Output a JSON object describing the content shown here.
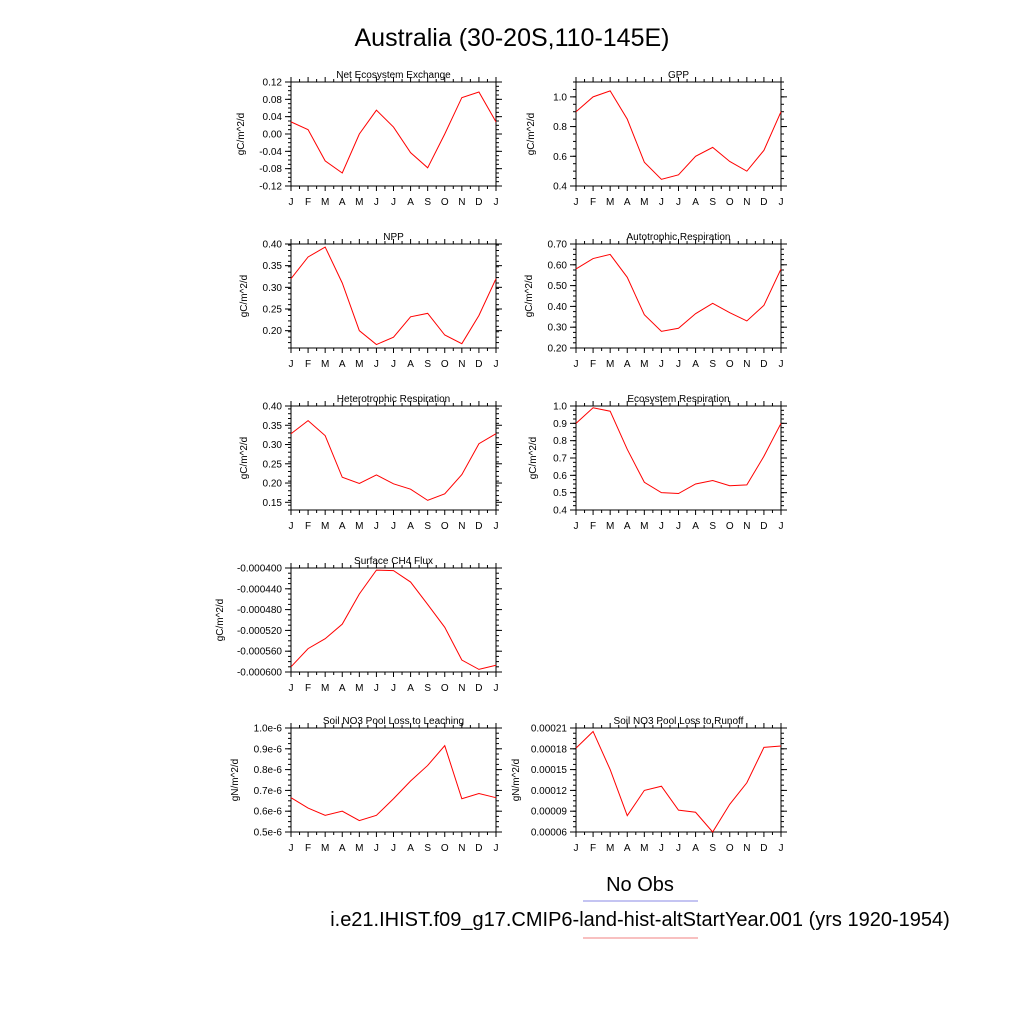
{
  "figure": {
    "title": "Australia (30-20S,110-145E)",
    "legend": {
      "obs_label": "No Obs",
      "obs_color": "#8a8ae6",
      "model_label": "i.e21.IHIST.f09_g17.CMIP6-land-hist-altStartYear.001 (yrs 1920-1954)",
      "model_color": "#f08080"
    },
    "series_color": "#ff0000"
  },
  "chart_data": [
    {
      "type": "line",
      "title": "Net Ecosystem Exchange",
      "ylabel": "gC/m^2/d",
      "x": [
        "J",
        "F",
        "M",
        "A",
        "M",
        "J",
        "J",
        "A",
        "S",
        "O",
        "N",
        "D",
        "J"
      ],
      "values": [
        0.028,
        0.01,
        -0.062,
        -0.09,
        0.0,
        0.055,
        0.016,
        -0.043,
        -0.078,
        0.0,
        0.084,
        0.097,
        0.028
      ],
      "ylim": [
        -0.12,
        0.12
      ],
      "yticks": [
        -0.12,
        -0.08,
        -0.04,
        0.0,
        0.04,
        0.08,
        0.12
      ],
      "ytick_labels": [
        "-0.12",
        "-0.08",
        "-0.04",
        "0.00",
        "0.04",
        "0.08",
        "0.12"
      ]
    },
    {
      "type": "line",
      "title": "GPP",
      "ylabel": "gC/m^2/d",
      "x": [
        "J",
        "F",
        "M",
        "A",
        "M",
        "J",
        "J",
        "A",
        "S",
        "O",
        "N",
        "D",
        "J"
      ],
      "values": [
        0.9,
        1.0,
        1.04,
        0.85,
        0.56,
        0.445,
        0.475,
        0.6,
        0.66,
        0.565,
        0.5,
        0.64,
        0.9
      ],
      "ylim": [
        0.4,
        1.1
      ],
      "yticks": [
        0.4,
        0.6,
        0.8,
        1.0
      ],
      "ytick_labels": [
        "0.4",
        "0.6",
        "0.8",
        "1.0"
      ]
    },
    {
      "type": "line",
      "title": "NPP",
      "ylabel": "gC/m^2/d",
      "x": [
        "J",
        "F",
        "M",
        "A",
        "M",
        "J",
        "J",
        "A",
        "S",
        "O",
        "N",
        "D",
        "J"
      ],
      "values": [
        0.32,
        0.37,
        0.393,
        0.31,
        0.2,
        0.168,
        0.185,
        0.232,
        0.24,
        0.19,
        0.17,
        0.235,
        0.32
      ],
      "ylim": [
        0.16,
        0.4
      ],
      "yticks": [
        0.2,
        0.25,
        0.3,
        0.35,
        0.4
      ],
      "ytick_labels": [
        "0.20",
        "0.25",
        "0.30",
        "0.35",
        "0.40"
      ]
    },
    {
      "type": "line",
      "title": "Autotrophic Respiration",
      "ylabel": "gC/m^2/d",
      "x": [
        "J",
        "F",
        "M",
        "A",
        "M",
        "J",
        "J",
        "A",
        "S",
        "O",
        "N",
        "D",
        "J"
      ],
      "values": [
        0.58,
        0.63,
        0.65,
        0.54,
        0.36,
        0.28,
        0.295,
        0.365,
        0.415,
        0.37,
        0.33,
        0.405,
        0.58
      ],
      "ylim": [
        0.2,
        0.7
      ],
      "yticks": [
        0.2,
        0.3,
        0.4,
        0.5,
        0.6,
        0.7
      ],
      "ytick_labels": [
        "0.20",
        "0.30",
        "0.40",
        "0.50",
        "0.60",
        "0.70"
      ]
    },
    {
      "type": "line",
      "title": "Heterotrophic Respiration",
      "ylabel": "gC/m^2/d",
      "x": [
        "J",
        "F",
        "M",
        "A",
        "M",
        "J",
        "J",
        "A",
        "S",
        "O",
        "N",
        "D",
        "J"
      ],
      "values": [
        0.328,
        0.362,
        0.323,
        0.215,
        0.199,
        0.221,
        0.198,
        0.184,
        0.155,
        0.172,
        0.222,
        0.302,
        0.328
      ],
      "ylim": [
        0.13,
        0.4
      ],
      "yticks": [
        0.15,
        0.2,
        0.25,
        0.3,
        0.35,
        0.4
      ],
      "ytick_labels": [
        "0.15",
        "0.20",
        "0.25",
        "0.30",
        "0.35",
        "0.40"
      ]
    },
    {
      "type": "line",
      "title": "Ecosystem Respiration",
      "ylabel": "gC/m^2/d",
      "x": [
        "J",
        "F",
        "M",
        "A",
        "M",
        "J",
        "J",
        "A",
        "S",
        "O",
        "N",
        "D",
        "J"
      ],
      "values": [
        0.9,
        0.99,
        0.97,
        0.75,
        0.56,
        0.5,
        0.495,
        0.55,
        0.57,
        0.54,
        0.545,
        0.71,
        0.9
      ],
      "ylim": [
        0.4,
        1.0
      ],
      "yticks": [
        0.4,
        0.5,
        0.6,
        0.7,
        0.8,
        0.9,
        1.0
      ],
      "ytick_labels": [
        "0.4",
        "0.5",
        "0.6",
        "0.7",
        "0.8",
        "0.9",
        "1.0"
      ]
    },
    {
      "type": "line",
      "title": "Surface CH4 Flux",
      "ylabel": "gC/m^2/d",
      "x": [
        "J",
        "F",
        "M",
        "A",
        "M",
        "J",
        "J",
        "A",
        "S",
        "O",
        "N",
        "D",
        "J"
      ],
      "values": [
        -0.00059,
        -0.000555,
        -0.000536,
        -0.000508,
        -0.00045,
        -0.000404,
        -0.000405,
        -0.000427,
        -0.00047,
        -0.000514,
        -0.000577,
        -0.000595,
        -0.000587
      ],
      "ylim": [
        -0.0006,
        -0.0004
      ],
      "yticks": [
        -0.0006,
        -0.00056,
        -0.00052,
        -0.00048,
        -0.00044,
        -0.0004
      ],
      "ytick_labels": [
        "-0.000600",
        "-0.000560",
        "-0.000520",
        "-0.000480",
        "-0.000440",
        "-0.000400"
      ]
    },
    {
      "type": "line",
      "title": "Soil NO3 Pool Loss to Leaching",
      "ylabel": "gN/m^2/d",
      "x": [
        "J",
        "F",
        "M",
        "A",
        "M",
        "J",
        "J",
        "A",
        "S",
        "O",
        "N",
        "D",
        "J"
      ],
      "values": [
        6.65e-07,
        6.15e-07,
        5.8e-07,
        6e-07,
        5.55e-07,
        5.8e-07,
        6.6e-07,
        7.45e-07,
        8.2e-07,
        9.15e-07,
        6.6e-07,
        6.85e-07,
        6.65e-07
      ],
      "ylim": [
        5e-07,
        1e-06
      ],
      "yticks": [
        5e-07,
        6e-07,
        7e-07,
        8e-07,
        9e-07,
        1e-06
      ],
      "ytick_labels": [
        "0.5e-6",
        "0.6e-6",
        "0.7e-6",
        "0.8e-6",
        "0.9e-6",
        "1.0e-6"
      ]
    },
    {
      "type": "line",
      "title": "Soil NO3 Pool Loss to Runoff",
      "ylabel": "gN/m^2/d",
      "x": [
        "J",
        "F",
        "M",
        "A",
        "M",
        "J",
        "J",
        "A",
        "S",
        "O",
        "N",
        "D",
        "J"
      ],
      "values": [
        0.000181,
        0.000205,
        0.00015,
        8.35e-05,
        0.00012,
        0.000126,
        9.15e-05,
        8.85e-05,
        6e-05,
        0.0001,
        0.000131,
        0.000182,
        0.000184
      ],
      "ylim": [
        6e-05,
        0.00021
      ],
      "yticks": [
        6e-05,
        9e-05,
        0.00012,
        0.00015,
        0.00018,
        0.00021
      ],
      "ytick_labels": [
        "0.00006",
        "0.00009",
        "0.00012",
        "0.00015",
        "0.00018",
        "0.00021"
      ]
    }
  ]
}
